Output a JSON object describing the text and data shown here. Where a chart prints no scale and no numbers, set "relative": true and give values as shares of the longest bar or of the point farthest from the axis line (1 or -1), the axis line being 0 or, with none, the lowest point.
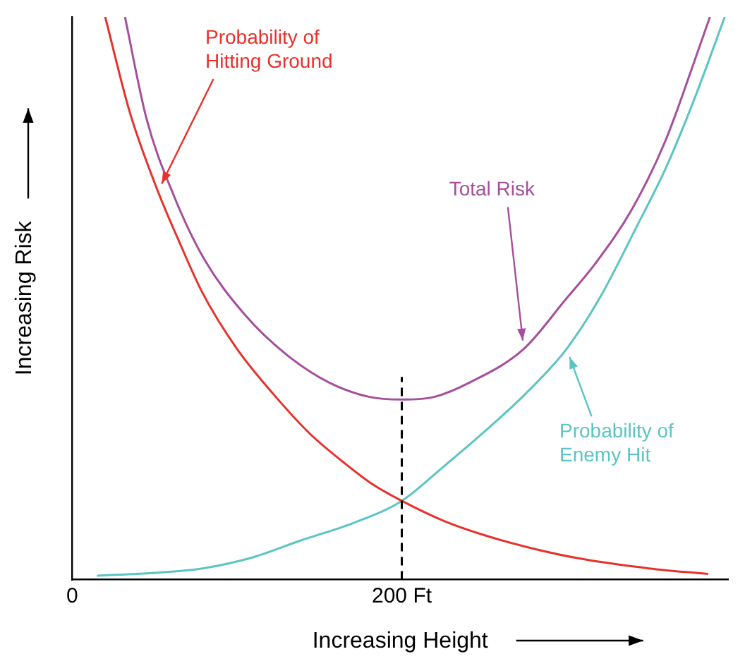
{
  "chart_data": {
    "type": "line",
    "xlabel": "Increasing Height",
    "ylabel": "Increasing Risk",
    "relative": true,
    "xlim": [
      0,
      398
    ],
    "xticks": [
      0,
      {
        "value": 200,
        "label": "200 Ft"
      }
    ],
    "grid": false,
    "legend": false,
    "marker": "none",
    "line_style": "solid",
    "ref_lines": [
      {
        "axis": "x",
        "value": 200,
        "line_style": "dashed",
        "color": "#000000"
      }
    ],
    "series": [
      {
        "name": "Probability of Hitting Ground",
        "color": "#e8312a",
        "x": [
          20,
          35,
          52,
          65,
          79,
          100,
          122,
          144,
          164,
          182,
          200,
          225,
          249,
          280,
          309,
          350,
          386
        ],
        "values": [
          1.0,
          0.83,
          0.69,
          0.6,
          0.51,
          0.41,
          0.33,
          0.26,
          0.21,
          0.17,
          0.14,
          0.105,
          0.08,
          0.055,
          0.037,
          0.02,
          0.01
        ]
      },
      {
        "name": "Total Risk",
        "color": "#a54f9c",
        "x": [
          32,
          45,
          62,
          80,
          105,
          130,
          156,
          180,
          200,
          220,
          241,
          274,
          300,
          317,
          340,
          360,
          381,
          387
        ],
        "values": [
          1.0,
          0.82,
          0.68,
          0.57,
          0.47,
          0.4,
          0.35,
          0.325,
          0.32,
          0.325,
          0.35,
          0.41,
          0.5,
          0.56,
          0.66,
          0.78,
          0.95,
          1.0
        ]
      },
      {
        "name": "Probability of Enemy Hit",
        "color": "#5bc4c4",
        "x": [
          15,
          50,
          79,
          110,
          139,
          170,
          200,
          225,
          249,
          275,
          300,
          320,
          343,
          360,
          377,
          396
        ],
        "values": [
          0.007,
          0.012,
          0.02,
          0.04,
          0.07,
          0.1,
          0.14,
          0.2,
          0.26,
          0.33,
          0.41,
          0.5,
          0.63,
          0.73,
          0.85,
          1.0
        ]
      }
    ]
  }
}
